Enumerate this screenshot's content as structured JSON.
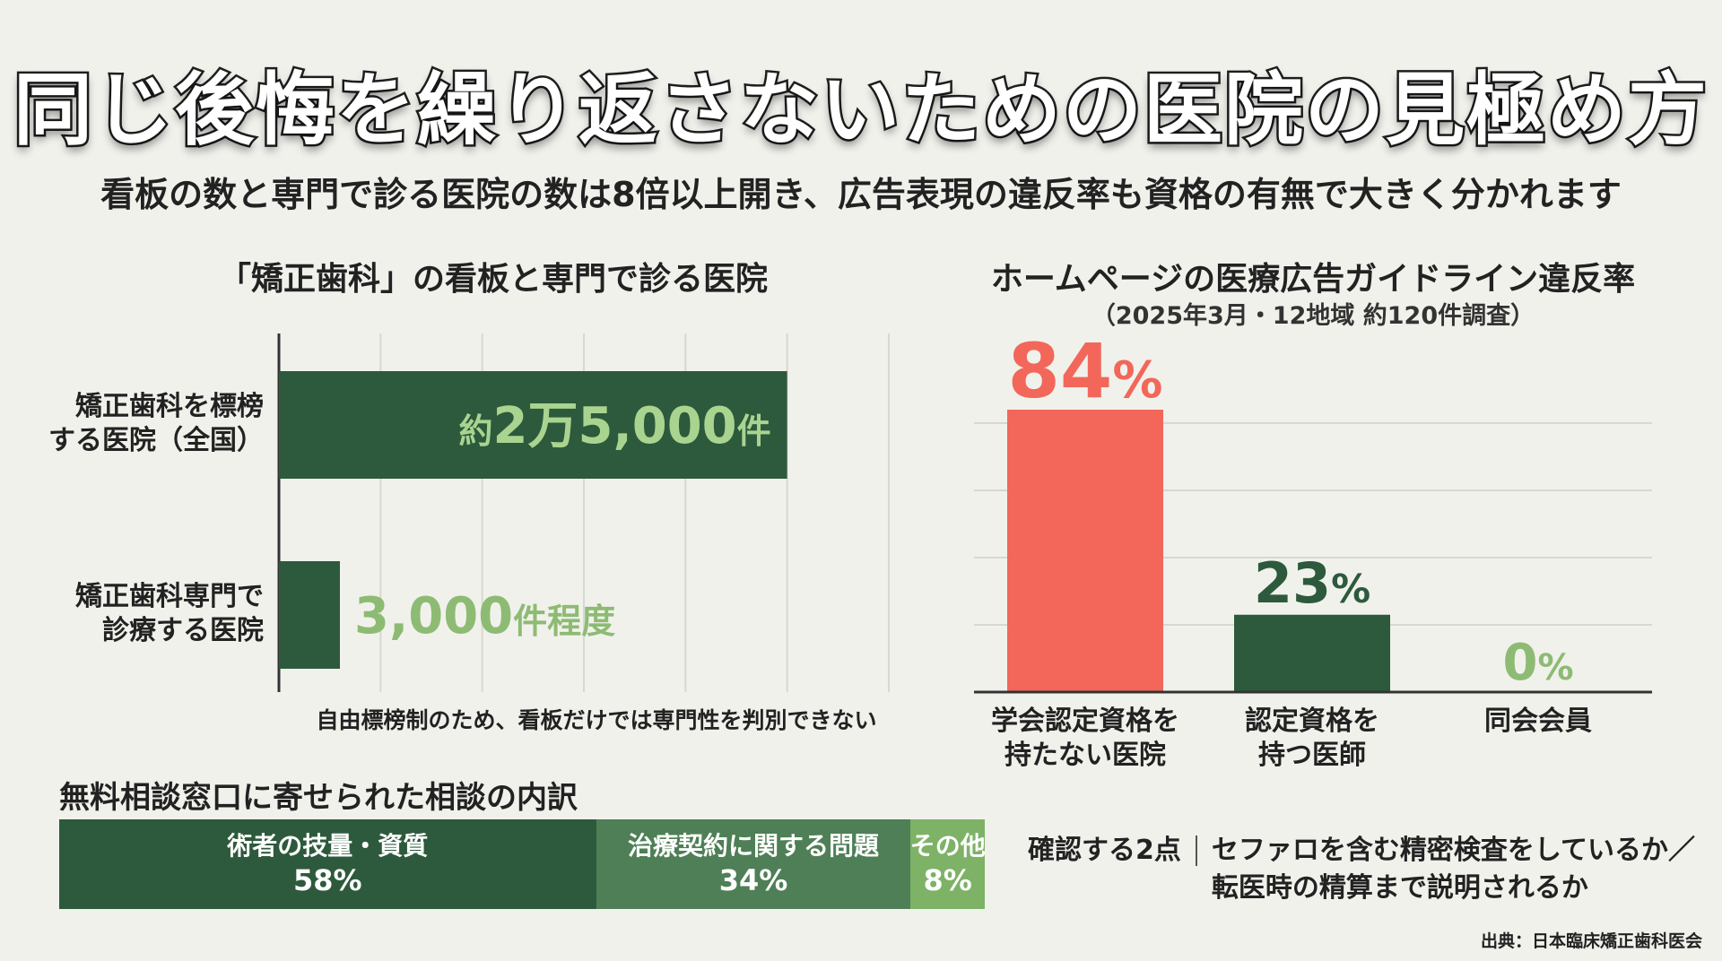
{
  "title": "同じ後悔を繰り返さないための医院の見極め方",
  "subtitle": "看板の数と専門で診る医院の数は8倍以上開き、広告表現の違反率も資格の有無で大きく分かれます",
  "chart_data": [
    {
      "type": "bar",
      "orientation": "horizontal",
      "title": "「矯正歯科」の看板と専門で診る医院",
      "categories": [
        "矯正歯科を標榜する医院（全国）",
        "矯正歯科専門で診療する医院"
      ],
      "category_lines": [
        [
          "矯正歯科を標榜",
          "する医院（全国）"
        ],
        [
          "矯正歯科専門で",
          "診療する医院"
        ]
      ],
      "values": [
        25000,
        3000
      ],
      "value_labels": [
        {
          "prefix": "約",
          "main": "2万5,000",
          "suffix": "件"
        },
        {
          "prefix": "",
          "main": "3,000",
          "suffix": "件程度"
        }
      ],
      "xlim": [
        0,
        30000
      ],
      "grid": true,
      "note": "自由標榜制のため、看板だけでは専門性を判別できない",
      "colors": {
        "bar": "#2d5a3c",
        "label_inside": "#a9d490",
        "label_outside": "#8dbb73",
        "grid": "#d8d8d2"
      }
    },
    {
      "type": "bar",
      "orientation": "vertical",
      "title": "ホームページの医療広告ガイドライン違反率",
      "subtitle": "（2025年3月・12地域 約120件調査）",
      "categories": [
        "学会認定資格を持たない医院",
        "認定資格を持つ医師",
        "同会会員"
      ],
      "category_lines": [
        [
          "学会認定資格を",
          "持たない医院"
        ],
        [
          "認定資格を",
          "持つ医師"
        ],
        [
          "同会会員"
        ]
      ],
      "values": [
        84,
        23,
        0
      ],
      "unit": "%",
      "ylim": [
        0,
        100
      ],
      "grid": true,
      "colors": {
        "bars": [
          "#f2675a",
          "#2d5a3c",
          "#2d5a3c"
        ],
        "labels": [
          "#f2675a",
          "#2d5a3c",
          "#8dbb73"
        ],
        "grid": "#d8d8d2"
      }
    },
    {
      "type": "bar",
      "orientation": "stacked-horizontal",
      "title": "無料相談窓口に寄せられた相談の内訳",
      "categories": [
        "術者の技量・資質",
        "治療契約に関する問題",
        "その他"
      ],
      "values": [
        58,
        34,
        8
      ],
      "value_labels": [
        "58%",
        "34%",
        "8%"
      ],
      "colors": [
        "#2d5a3c",
        "#4e7f56",
        "#7db267"
      ]
    }
  ],
  "check": {
    "lead": "確認する2点",
    "lines": [
      "セファロを含む精密検査をしているか／",
      "転医時の精算まで説明されるか"
    ]
  },
  "source": "出典：日本臨床矯正歯科医会"
}
